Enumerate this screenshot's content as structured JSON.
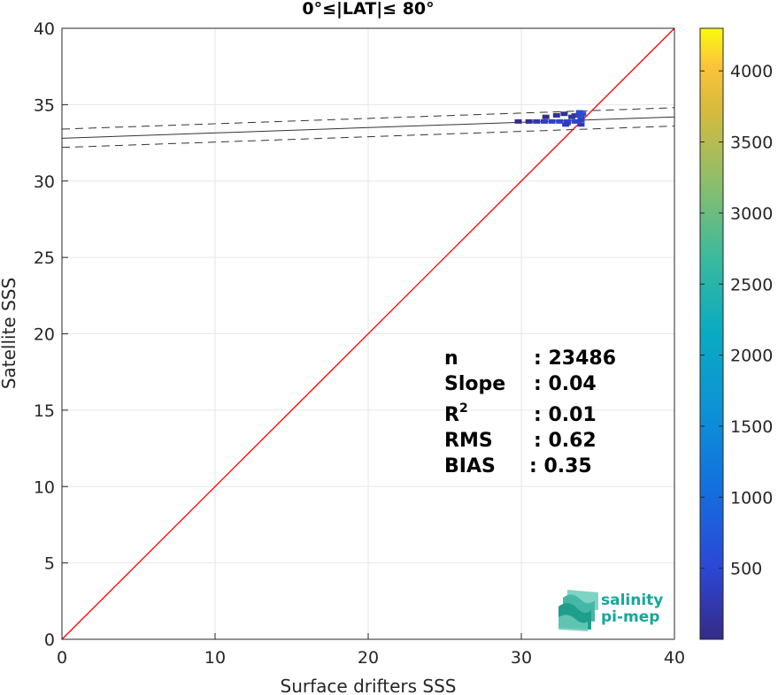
{
  "chart_data": {
    "type": "scatter",
    "title": "0°≤|LAT|≤ 80°",
    "xlabel": "Surface drifters SSS",
    "ylabel": "Satellite SSS",
    "xlim": [
      0,
      40
    ],
    "ylim": [
      0,
      40
    ],
    "xticks": [
      "0",
      "10",
      "20",
      "30",
      "40"
    ],
    "yticks": [
      "0",
      "5",
      "10",
      "15",
      "20",
      "25",
      "30",
      "35",
      "40"
    ],
    "grid": true,
    "identity_line": {
      "x": [
        0,
        40
      ],
      "y": [
        0,
        40
      ],
      "color": "#ff0000"
    },
    "regression_line": {
      "x": [
        0,
        40
      ],
      "y": [
        32.8,
        34.2
      ],
      "color": "#333333"
    },
    "confidence_band": {
      "upper": {
        "x": [
          0,
          40
        ],
        "y": [
          33.4,
          34.8
        ]
      },
      "lower": {
        "x": [
          0,
          40
        ],
        "y": [
          32.2,
          33.6
        ]
      }
    },
    "density_points": [
      {
        "x": 30.5,
        "y": 33.9,
        "count": 60
      },
      {
        "x": 31.0,
        "y": 33.9,
        "count": 250
      },
      {
        "x": 31.5,
        "y": 33.9,
        "count": 350
      },
      {
        "x": 32.0,
        "y": 33.9,
        "count": 400
      },
      {
        "x": 32.5,
        "y": 33.9,
        "count": 450
      },
      {
        "x": 33.0,
        "y": 33.9,
        "count": 500
      },
      {
        "x": 33.5,
        "y": 33.9,
        "count": 450
      },
      {
        "x": 33.9,
        "y": 34.2,
        "count": 700
      },
      {
        "x": 33.7,
        "y": 34.3,
        "count": 800
      },
      {
        "x": 33.8,
        "y": 34.5,
        "count": 600
      },
      {
        "x": 34.0,
        "y": 34.4,
        "count": 500
      },
      {
        "x": 33.5,
        "y": 34.3,
        "count": 350
      },
      {
        "x": 33.9,
        "y": 34.0,
        "count": 400
      },
      {
        "x": 33.0,
        "y": 33.8,
        "count": 300
      },
      {
        "x": 32.8,
        "y": 34.4,
        "count": 100
      },
      {
        "x": 32.3,
        "y": 34.3,
        "count": 80
      },
      {
        "x": 31.6,
        "y": 34.2,
        "count": 50
      },
      {
        "x": 33.3,
        "y": 34.2,
        "count": 150
      },
      {
        "x": 29.8,
        "y": 33.9,
        "count": 20
      },
      {
        "x": 33.9,
        "y": 33.7,
        "count": 250
      },
      {
        "x": 32.9,
        "y": 33.7,
        "count": 300
      }
    ],
    "colorbar": {
      "min": 0,
      "max": 4300,
      "ticks": [
        "500",
        "1000",
        "1500",
        "2000",
        "2500",
        "3000",
        "3500",
        "4000"
      ],
      "colormap": "parula"
    },
    "stats": {
      "n_label": "n",
      "n_value": ": 23486",
      "slope_label": "Slope",
      "slope_value": ": 0.04",
      "r2_label": "R",
      "r2_sup": "2",
      "r2_value": ": 0.01",
      "rms_label": "RMS",
      "rms_value": ": 0.62",
      "bias_label": "BIAS",
      "bias_value": ": 0.35"
    }
  },
  "logo": {
    "line1": "salinity",
    "line2": "pi-mep",
    "color": "#17a79a"
  }
}
